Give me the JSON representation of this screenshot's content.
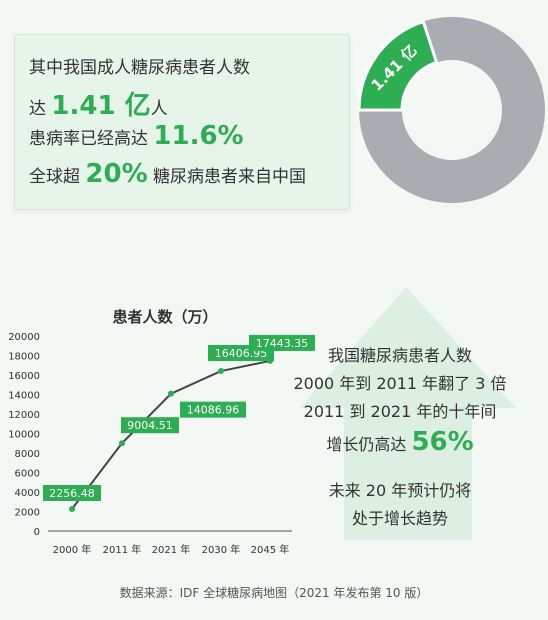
{
  "summary": {
    "line1": "其中我国成人糖尿病患者人数",
    "line2_pre": "达",
    "line2_value": "1.41 亿",
    "line2_post": "人",
    "line3_pre": "患病率已经高达",
    "line3_value": "11.6%",
    "line4_pre": "全球超",
    "line4_value": "20%",
    "line4_post": "糖尿病患者来自中国"
  },
  "donut": {
    "label": "1.41 亿",
    "share": 0.2,
    "colors": {
      "highlight": "#2eae53",
      "rest": "#a9acb0"
    }
  },
  "chart_data": {
    "type": "line",
    "title": "患者人数（万）",
    "xlabel": "",
    "ylabel": "",
    "categories": [
      "2000 年",
      "2011 年",
      "2021 年",
      "2030 年",
      "2045 年"
    ],
    "values": [
      2256.48,
      9004.51,
      14086.96,
      16406.95,
      17443.35
    ],
    "data_labels": [
      "2256.48",
      "9004.51",
      "14086.96",
      "16406.95",
      "17443.35"
    ],
    "ylim": [
      0,
      20000
    ],
    "yticks": [
      0,
      2000,
      4000,
      6000,
      8000,
      10000,
      12000,
      14000,
      16000,
      18000,
      20000
    ],
    "grid": false,
    "legend": "none",
    "colors": {
      "line": "#444444",
      "point": "#2eae53",
      "label_bg": "#2eae53"
    }
  },
  "growth": {
    "line1": "我国糖尿病患者人数",
    "line2": "2000 年到 2011 年翻了 3 倍",
    "line3": "2011 到 2021 年的十年间",
    "line4_pre": "增长仍高达",
    "line4_value": "56%",
    "forecast1": "未来 20 年预计仍将",
    "forecast2": "处于增长趋势"
  },
  "source": "数据来源：IDF 全球糖尿病地图（2021 年发布第 10 版）",
  "colors": {
    "accent": "#2eae53",
    "arrow": "#dcefe2"
  }
}
